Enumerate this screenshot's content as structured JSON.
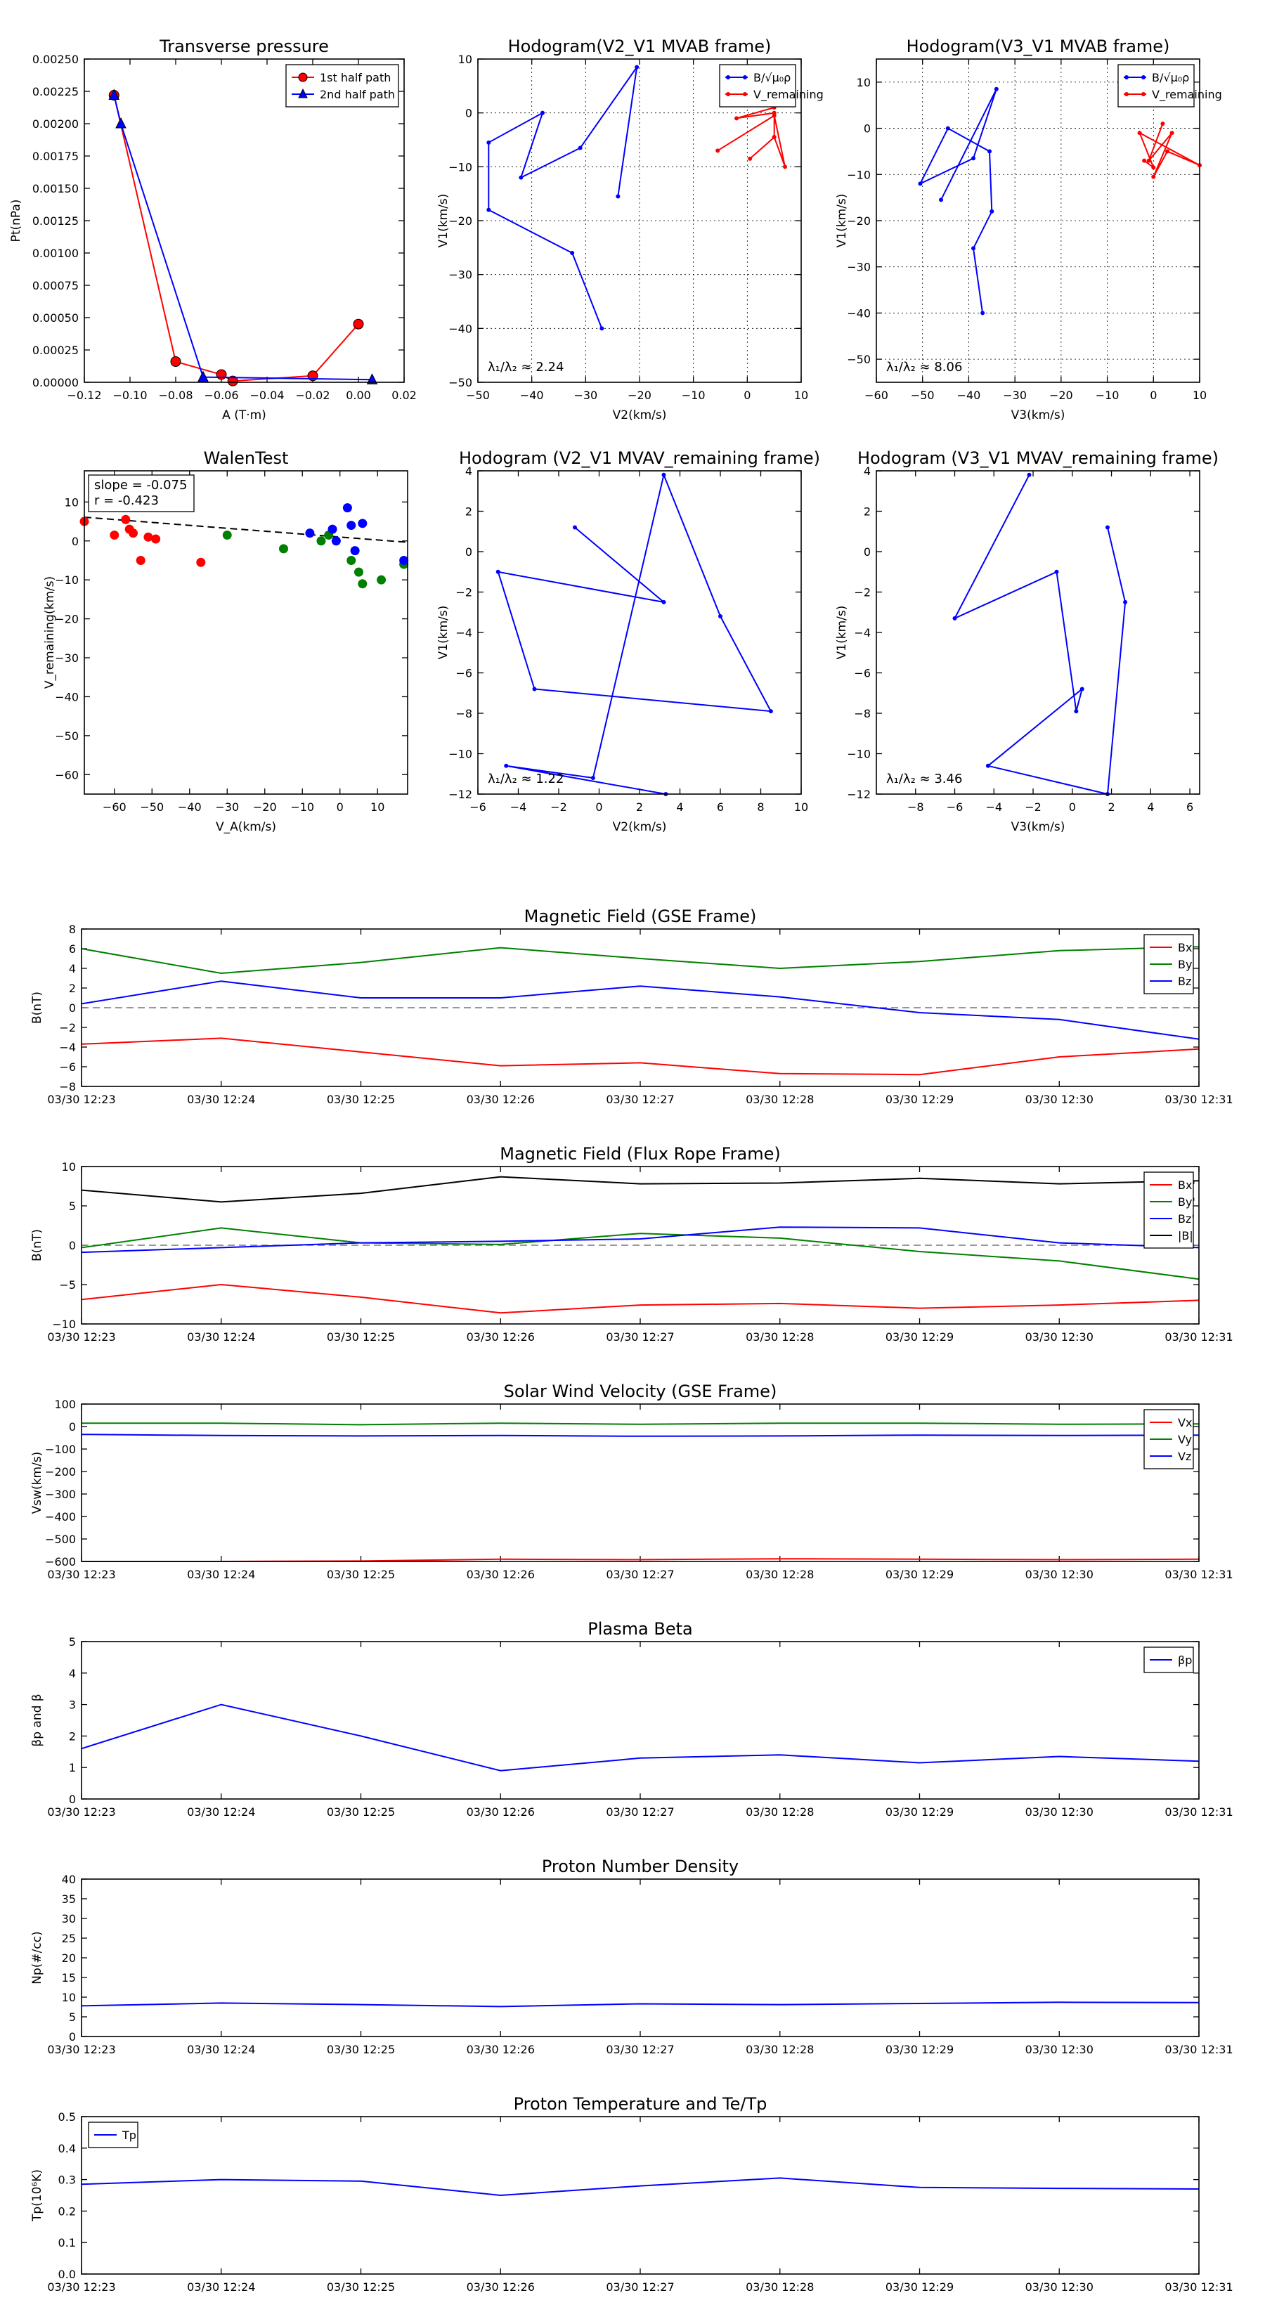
{
  "times": [
    "03/30 12:23",
    "03/30 12:24",
    "03/30 12:25",
    "03/30 12:26",
    "03/30 12:27",
    "03/30 12:28",
    "03/30 12:29",
    "03/30 12:30",
    "03/30 12:31"
  ],
  "chart_data": [
    {
      "id": "transverse-pressure",
      "type": "line",
      "title": "Transverse pressure",
      "xlabel": "A (T·m)",
      "ylabel": "Pt(nPa)",
      "xlim": [
        -0.12,
        0.02
      ],
      "ylim": [
        0,
        0.0025
      ],
      "xticks": [
        "−0.12",
        "−0.10",
        "−0.08",
        "−0.06",
        "−0.04",
        "−0.02",
        "0.00",
        "0.02"
      ],
      "yticks": [
        "0.00000",
        "0.00025",
        "0.00050",
        "0.00075",
        "0.00100",
        "0.00125",
        "0.00150",
        "0.00175",
        "0.00200",
        "0.00225",
        "0.00250"
      ],
      "legend": "top-right",
      "series": [
        {
          "name": "1st half path",
          "color": "#ff0000",
          "marker": "circle",
          "x": [
            -0.107,
            -0.08,
            -0.06,
            -0.055,
            -0.02,
            0.0
          ],
          "y": [
            0.00222,
            0.00016,
            6e-05,
            1e-05,
            5e-05,
            0.00045
          ]
        },
        {
          "name": "2nd half path",
          "color": "#0000ff",
          "marker": "triangle",
          "x": [
            -0.107,
            -0.104,
            -0.068,
            0.006
          ],
          "y": [
            0.00222,
            0.002,
            4e-05,
            2e-05
          ]
        }
      ]
    },
    {
      "id": "hodogram-v2-v1-mvab",
      "type": "line",
      "title": "Hodogram(V2_V1 MVAB frame)",
      "xlabel": "V2(km/s)",
      "ylabel": "V1(km/s)",
      "xlim": [
        -50,
        10
      ],
      "ylim": [
        -50,
        10
      ],
      "xticks": [
        "−50",
        "−40",
        "−30",
        "−20",
        "−10",
        "0",
        "10"
      ],
      "yticks": [
        "−50",
        "−40",
        "−30",
        "−20",
        "−10",
        "0",
        "10"
      ],
      "grid": true,
      "legend": "top-right",
      "annotation": "λ₁/λ₂ ≈ 2.24",
      "series": [
        {
          "name": "B/√μ₀ρ",
          "color": "#0000ff",
          "x": [
            -27,
            -32.5,
            -48,
            -48,
            -38,
            -42,
            -31,
            -20.5,
            -24
          ],
          "y": [
            -40,
            -26,
            -18,
            -5.5,
            0,
            -12,
            -6.5,
            8.5,
            -15.5
          ]
        },
        {
          "name": "V_remaining",
          "color": "#ff0000",
          "x": [
            -5.5,
            5,
            7,
            5,
            0.5,
            5,
            5,
            -2,
            5
          ],
          "y": [
            -7,
            -0.5,
            -10,
            -4.5,
            -8.5,
            -4.5,
            0,
            -1,
            1
          ]
        }
      ]
    },
    {
      "id": "hodogram-v3-v1-mvab",
      "type": "line",
      "title": "Hodogram(V3_V1 MVAB frame)",
      "xlabel": "V3(km/s)",
      "ylabel": "V1(km/s)",
      "xlim": [
        -60,
        10
      ],
      "ylim": [
        -55,
        15
      ],
      "xticks": [
        "−60",
        "−50",
        "−40",
        "−30",
        "−20",
        "−10",
        "0",
        "10"
      ],
      "yticks": [
        "−50",
        "−40",
        "−30",
        "−20",
        "−10",
        "0",
        "10"
      ],
      "grid": true,
      "legend": "top-right",
      "annotation": "λ₁/λ₂ ≈ 8.06",
      "series": [
        {
          "name": "B/√μ₀ρ",
          "color": "#0000ff",
          "x": [
            -37,
            -39,
            -35,
            -35.5,
            -44.5,
            -50.5,
            -39,
            -34,
            -46
          ],
          "y": [
            -40,
            -26,
            -18,
            -5,
            0,
            -12,
            -6.5,
            8.5,
            -15.5
          ]
        },
        {
          "name": "V_remaining",
          "color": "#ff0000",
          "x": [
            -2,
            0,
            -3,
            10,
            3,
            0,
            4,
            -1,
            2
          ],
          "y": [
            -7,
            -8.5,
            -1,
            -8,
            -5,
            -10.5,
            -1,
            -7,
            1
          ]
        }
      ]
    },
    {
      "id": "walen-test",
      "type": "scatter",
      "title": "WalenTest",
      "xlabel": "V_A(km/s)",
      "ylabel": "V_remaining(km/s)",
      "xlim": [
        -68,
        18
      ],
      "ylim": [
        -65,
        18
      ],
      "xticks": [
        "−60",
        "−50",
        "−40",
        "−30",
        "−20",
        "−10",
        "0",
        "10"
      ],
      "yticks": [
        "−60",
        "−50",
        "−40",
        "−30",
        "−20",
        "−10",
        "0",
        "10"
      ],
      "annotation_lines": [
        "slope = -0.075",
        "r = -0.423"
      ],
      "fit": {
        "slope": -0.075,
        "intercept": 1.0
      },
      "series": [
        {
          "color": "#ff0000",
          "x": [
            -68,
            -60,
            -57,
            -56,
            -55,
            -53,
            -51,
            -49,
            -37
          ],
          "y": [
            5,
            1.5,
            5.5,
            3,
            2,
            -5,
            1,
            0.5,
            -5.5
          ]
        },
        {
          "color": "#008000",
          "x": [
            -30,
            -15,
            -5,
            -3,
            3,
            5,
            6,
            11,
            17
          ],
          "y": [
            1.5,
            -2,
            0,
            1.5,
            -5,
            -8,
            -11,
            -10,
            -6
          ]
        },
        {
          "color": "#0000ff",
          "x": [
            -8,
            -2,
            -1,
            2,
            3,
            4,
            6,
            17
          ],
          "y": [
            2,
            3,
            0,
            8.5,
            4,
            -2.5,
            4.5,
            -5
          ]
        }
      ]
    },
    {
      "id": "hodogram-v2-v1-mvav",
      "type": "line",
      "title": "Hodogram (V2_V1 MVAV_remaining frame)",
      "xlabel": "V2(km/s)",
      "ylabel": "V1(km/s)",
      "xlim": [
        -6,
        10
      ],
      "ylim": [
        -12,
        4
      ],
      "xticks": [
        "−6",
        "−4",
        "−2",
        "0",
        "2",
        "4",
        "6",
        "8",
        "10"
      ],
      "yticks": [
        "−12",
        "−10",
        "−8",
        "−6",
        "−4",
        "−2",
        "0",
        "2",
        "4"
      ],
      "annotation": "λ₁/λ₂ ≈ 1.22",
      "series": [
        {
          "color": "#0000ff",
          "x": [
            -1.2,
            3.2,
            -5.0,
            -3.2,
            8.5,
            6.0,
            3.2,
            -0.3,
            -4.6,
            3.3
          ],
          "y": [
            1.2,
            -2.5,
            -1.0,
            -6.8,
            -7.9,
            -3.2,
            3.8,
            -11.2,
            -10.6,
            -12.0
          ]
        }
      ]
    },
    {
      "id": "hodogram-v3-v1-mvav",
      "type": "line",
      "title": "Hodogram (V3_V1 MVAV_remaining frame)",
      "xlabel": "V3(km/s)",
      "ylabel": "V1(km/s)",
      "xlim": [
        -10,
        6.5
      ],
      "ylim": [
        -12,
        4
      ],
      "xticks": [
        "−8",
        "−6",
        "−4",
        "−2",
        "0",
        "2",
        "4",
        "6"
      ],
      "yticks": [
        "−12",
        "−10",
        "−8",
        "−6",
        "−4",
        "−2",
        "0",
        "2",
        "4"
      ],
      "annotation": "λ₁/λ₂ ≈ 3.46",
      "series": [
        {
          "color": "#0000ff",
          "x": [
            1.8,
            2.7,
            1.8,
            -4.3,
            0.5,
            0.2,
            -0.8,
            -6,
            -2.2
          ],
          "y": [
            1.2,
            -2.5,
            -12.0,
            -10.6,
            -6.8,
            -7.9,
            -1.0,
            -3.3,
            3.8
          ]
        }
      ]
    },
    {
      "id": "magnetic-field-gse",
      "type": "line",
      "title": "Magnetic Field (GSE Frame)",
      "ylabel": "B(nT)",
      "ylim": [
        -8,
        8
      ],
      "yticks": [
        "−8",
        "−6",
        "−4",
        "−2",
        "0",
        "2",
        "4",
        "6",
        "8"
      ],
      "zero_line": true,
      "legend": "top-right",
      "series": [
        {
          "name": "Bx",
          "color": "#ff0000",
          "values": [
            -3.7,
            -3.1,
            -4.5,
            -5.9,
            -5.6,
            -6.7,
            -6.8,
            -5.0,
            -4.2
          ]
        },
        {
          "name": "By",
          "color": "#008000",
          "values": [
            6.0,
            3.5,
            4.6,
            6.1,
            5.0,
            4.0,
            4.7,
            5.8,
            6.2
          ]
        },
        {
          "name": "Bz",
          "color": "#0000ff",
          "values": [
            0.4,
            2.7,
            1.0,
            1.0,
            2.2,
            1.1,
            -0.5,
            -1.2,
            -3.2
          ]
        }
      ]
    },
    {
      "id": "magnetic-field-flux-rope",
      "type": "line",
      "title": "Magnetic Field (Flux Rope Frame)",
      "ylabel": "B(nT)",
      "ylim": [
        -10,
        10
      ],
      "yticks": [
        "−10",
        "−5",
        "0",
        "5",
        "10"
      ],
      "zero_line": true,
      "legend": "top-right",
      "series": [
        {
          "name": "Bx'",
          "color": "#ff0000",
          "values": [
            -6.9,
            -5.0,
            -6.6,
            -8.6,
            -7.6,
            -7.4,
            -8.0,
            -7.6,
            -7.0
          ]
        },
        {
          "name": "By'",
          "color": "#008000",
          "values": [
            -0.3,
            2.2,
            0.3,
            0.1,
            1.5,
            0.9,
            -0.8,
            -2.0,
            -4.3
          ]
        },
        {
          "name": "Bz'",
          "color": "#0000ff",
          "values": [
            -0.9,
            -0.3,
            0.3,
            0.5,
            0.8,
            2.3,
            2.2,
            0.3,
            -0.3
          ]
        },
        {
          "name": "|B|",
          "color": "#000000",
          "values": [
            7.0,
            5.5,
            6.6,
            8.7,
            7.8,
            7.9,
            8.5,
            7.8,
            8.2
          ]
        }
      ]
    },
    {
      "id": "solar-wind-velocity",
      "type": "line",
      "title": "Solar Wind Velocity (GSE Frame)",
      "ylabel": "Vsw(km/s)",
      "ylim": [
        -600,
        100
      ],
      "yticks": [
        "−600",
        "−500",
        "−400",
        "−300",
        "−200",
        "−100",
        "0",
        "100"
      ],
      "legend": "top-right",
      "series": [
        {
          "name": "Vx",
          "color": "#ff0000",
          "values": [
            -600,
            -600,
            -598,
            -590,
            -592,
            -588,
            -590,
            -592,
            -590
          ]
        },
        {
          "name": "Vy",
          "color": "#008000",
          "values": [
            15,
            15,
            8,
            15,
            10,
            15,
            15,
            10,
            12
          ]
        },
        {
          "name": "Vz",
          "color": "#0000ff",
          "values": [
            -35,
            -40,
            -42,
            -40,
            -43,
            -42,
            -38,
            -40,
            -38
          ]
        }
      ]
    },
    {
      "id": "plasma-beta",
      "type": "line",
      "title": "Plasma Beta",
      "ylabel": "βp and β",
      "ylim": [
        0,
        5
      ],
      "yticks": [
        "0",
        "1",
        "2",
        "3",
        "4",
        "5"
      ],
      "legend": "top-right",
      "series": [
        {
          "name": "βp",
          "color": "#0000ff",
          "values": [
            1.6,
            3.0,
            2.0,
            0.9,
            1.3,
            1.4,
            1.15,
            1.35,
            1.2
          ]
        }
      ]
    },
    {
      "id": "proton-number-density",
      "type": "line",
      "title": "Proton Number Density",
      "ylabel": "Np(#/cc)",
      "ylim": [
        0,
        40
      ],
      "yticks": [
        "0",
        "5",
        "10",
        "15",
        "20",
        "25",
        "30",
        "35",
        "40"
      ],
      "series": [
        {
          "color": "#0000ff",
          "values": [
            7.8,
            8.5,
            8.1,
            7.6,
            8.3,
            8.1,
            8.4,
            8.7,
            8.6
          ]
        }
      ]
    },
    {
      "id": "proton-temperature",
      "type": "line",
      "title": "Proton Temperature and Te/Tp",
      "ylabel": "Tp(10⁶K)",
      "ylim": [
        0,
        0.5
      ],
      "yticks": [
        "0.0",
        "0.1",
        "0.2",
        "0.3",
        "0.4",
        "0.5"
      ],
      "legend": "top-left",
      "series": [
        {
          "name": "Tp",
          "color": "#0000ff",
          "values": [
            0.285,
            0.3,
            0.295,
            0.25,
            0.28,
            0.305,
            0.275,
            0.272,
            0.27
          ]
        }
      ]
    }
  ]
}
